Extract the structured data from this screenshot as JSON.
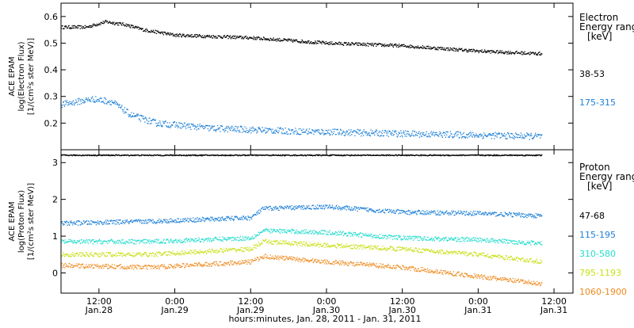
{
  "chart_data": {
    "type": "scatter",
    "x_axis": {
      "title": "hours:minutes, Jan. 28, 2011 - Jan. 31, 2011",
      "domain": [
        "2011-01-28T06:00",
        "2011-01-31T15:00"
      ],
      "ticks": [
        {
          "t": "2011-01-28T12:00",
          "time": "12:00",
          "date": "Jan.28"
        },
        {
          "t": "2011-01-29T00:00",
          "time": "0:00",
          "date": "Jan.29"
        },
        {
          "t": "2011-01-29T12:00",
          "time": "12:00",
          "date": "Jan.29"
        },
        {
          "t": "2011-01-30T00:00",
          "time": "0:00",
          "date": "Jan.30"
        },
        {
          "t": "2011-01-30T12:00",
          "time": "12:00",
          "date": "Jan.30"
        },
        {
          "t": "2011-01-31T00:00",
          "time": "0:00",
          "date": "Jan.31"
        },
        {
          "t": "2011-01-31T12:00",
          "time": "12:00",
          "date": "Jan.31"
        }
      ]
    },
    "panels": [
      {
        "name": "electron",
        "ylabel": [
          "ACE EPAM",
          "log(Electron Flux)",
          "[1/(cm²s ster MeV)]"
        ],
        "ylim": [
          0.1,
          0.65
        ],
        "yticks": [
          {
            "v": 0.2,
            "label": "0.2"
          },
          {
            "v": 0.3,
            "label": "0.3"
          },
          {
            "v": 0.4,
            "label": "0.4"
          },
          {
            "v": 0.5,
            "label": "0.5"
          },
          {
            "v": 0.6,
            "label": "0.6"
          }
        ],
        "legend_title": [
          "Electron",
          "Energy range",
          "[keV]"
        ],
        "series": [
          {
            "name": "38-53",
            "color": "#000000",
            "points": [
              [
                "2011-01-28T06:00",
                0.56
              ],
              [
                "2011-01-28T10:00",
                0.56
              ],
              [
                "2011-01-28T13:00",
                0.58
              ],
              [
                "2011-01-28T16:00",
                0.57
              ],
              [
                "2011-01-28T19:00",
                0.55
              ],
              [
                "2011-01-29T00:00",
                0.53
              ],
              [
                "2011-01-29T12:00",
                0.52
              ],
              [
                "2011-01-30T00:00",
                0.5
              ],
              [
                "2011-01-30T12:00",
                0.49
              ],
              [
                "2011-01-31T00:00",
                0.47
              ],
              [
                "2011-01-31T10:00",
                0.46
              ]
            ]
          },
          {
            "name": "175-315",
            "color": "#1c7fd6",
            "points": [
              [
                "2011-01-28T06:00",
                0.27
              ],
              [
                "2011-01-28T11:00",
                0.29
              ],
              [
                "2011-01-28T14:00",
                0.28
              ],
              [
                "2011-01-28T17:00",
                0.23
              ],
              [
                "2011-01-28T21:00",
                0.2
              ],
              [
                "2011-01-29T06:00",
                0.18
              ],
              [
                "2011-01-29T18:00",
                0.17
              ],
              [
                "2011-01-30T12:00",
                0.16
              ],
              [
                "2011-01-31T10:00",
                0.15
              ]
            ]
          }
        ]
      },
      {
        "name": "proton",
        "ylabel": [
          "ACE EPAM",
          "log(Proton Flux)",
          "[1/(cm²s ster MeV)]"
        ],
        "ylim": [
          -0.55,
          3.35
        ],
        "yticks": [
          {
            "v": 0,
            "label": "0"
          },
          {
            "v": 1,
            "label": "1"
          },
          {
            "v": 2,
            "label": "2"
          },
          {
            "v": 3,
            "label": "3"
          }
        ],
        "legend_title": [
          "Proton",
          "Energy range",
          "[keV]"
        ],
        "series": [
          {
            "name": "47-68",
            "color": "#000000",
            "points": [
              [
                "2011-01-28T06:00",
                3.2
              ],
              [
                "2011-01-29T12:00",
                3.2
              ],
              [
                "2011-01-31T10:00",
                3.2
              ]
            ]
          },
          {
            "name": "115-195",
            "color": "#1c7fd6",
            "points": [
              [
                "2011-01-28T06:00",
                1.35
              ],
              [
                "2011-01-28T20:00",
                1.4
              ],
              [
                "2011-01-29T12:00",
                1.5
              ],
              [
                "2011-01-29T14:00",
                1.75
              ],
              [
                "2011-01-30T00:00",
                1.8
              ],
              [
                "2011-01-30T12:00",
                1.65
              ],
              [
                "2011-01-31T00:00",
                1.62
              ],
              [
                "2011-01-31T10:00",
                1.55
              ]
            ]
          },
          {
            "name": "310-580",
            "color": "#22dccc",
            "points": [
              [
                "2011-01-28T06:00",
                0.85
              ],
              [
                "2011-01-28T20:00",
                0.85
              ],
              [
                "2011-01-29T12:00",
                0.95
              ],
              [
                "2011-01-29T14:00",
                1.15
              ],
              [
                "2011-01-30T00:00",
                1.1
              ],
              [
                "2011-01-30T12:00",
                0.95
              ],
              [
                "2011-01-31T00:00",
                0.9
              ],
              [
                "2011-01-31T10:00",
                0.8
              ]
            ]
          },
          {
            "name": "795-1193",
            "color": "#c8e018",
            "points": [
              [
                "2011-01-28T06:00",
                0.5
              ],
              [
                "2011-01-28T20:00",
                0.5
              ],
              [
                "2011-01-29T12:00",
                0.65
              ],
              [
                "2011-01-29T14:00",
                0.85
              ],
              [
                "2011-01-30T00:00",
                0.75
              ],
              [
                "2011-01-30T12:00",
                0.65
              ],
              [
                "2011-01-31T00:00",
                0.5
              ],
              [
                "2011-01-31T10:00",
                0.3
              ]
            ]
          },
          {
            "name": "1060-1900",
            "color": "#ee8a1e",
            "points": [
              [
                "2011-01-28T06:00",
                0.2
              ],
              [
                "2011-01-28T20:00",
                0.15
              ],
              [
                "2011-01-29T12:00",
                0.3
              ],
              [
                "2011-01-29T14:00",
                0.45
              ],
              [
                "2011-01-30T00:00",
                0.3
              ],
              [
                "2011-01-30T12:00",
                0.15
              ],
              [
                "2011-01-31T00:00",
                -0.1
              ],
              [
                "2011-01-31T10:00",
                -0.3
              ]
            ]
          }
        ]
      }
    ]
  }
}
